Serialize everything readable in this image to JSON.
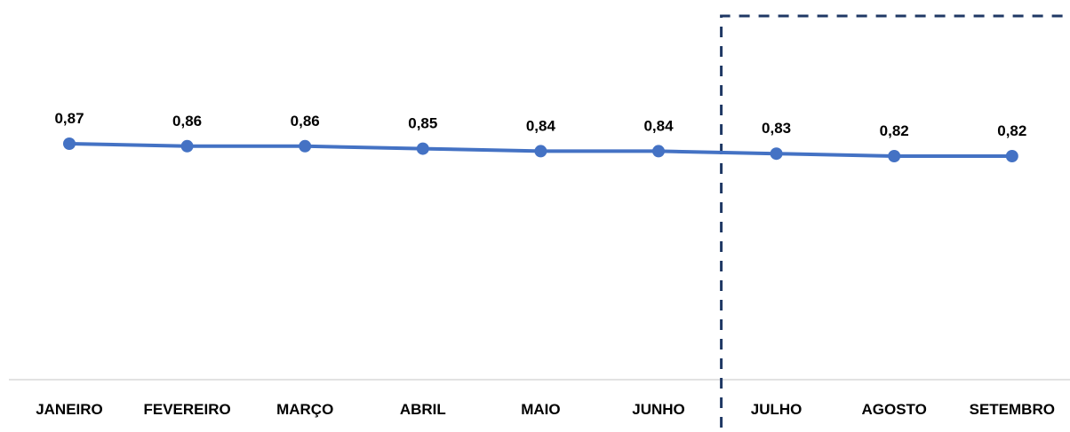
{
  "chart_data": {
    "type": "line",
    "categories": [
      "JANEIRO",
      "FEVEREIRO",
      "MARÇO",
      "ABRIL",
      "MAIO",
      "JUNHO",
      "JULHO",
      "AGOSTO",
      "SETEMBRO"
    ],
    "series": [
      {
        "values": [
          0.87,
          0.86,
          0.86,
          0.85,
          0.84,
          0.84,
          0.83,
          0.82,
          0.82
        ],
        "labels": [
          "0,87",
          "0,86",
          "0,86",
          "0,85",
          "0,84",
          "0,84",
          "0,83",
          "0,82",
          "0,82"
        ]
      }
    ],
    "title": "",
    "xlabel": "",
    "ylabel": "",
    "grid": false,
    "legend": "none",
    "highlight": {
      "from_category": "JULHO",
      "to_category": "SETEMBRO",
      "style": "dashed-box"
    },
    "colors": {
      "line": "#4472c4",
      "highlight_box": "#1f3864",
      "axis": "#d9d9d9",
      "text": "#000000"
    }
  }
}
